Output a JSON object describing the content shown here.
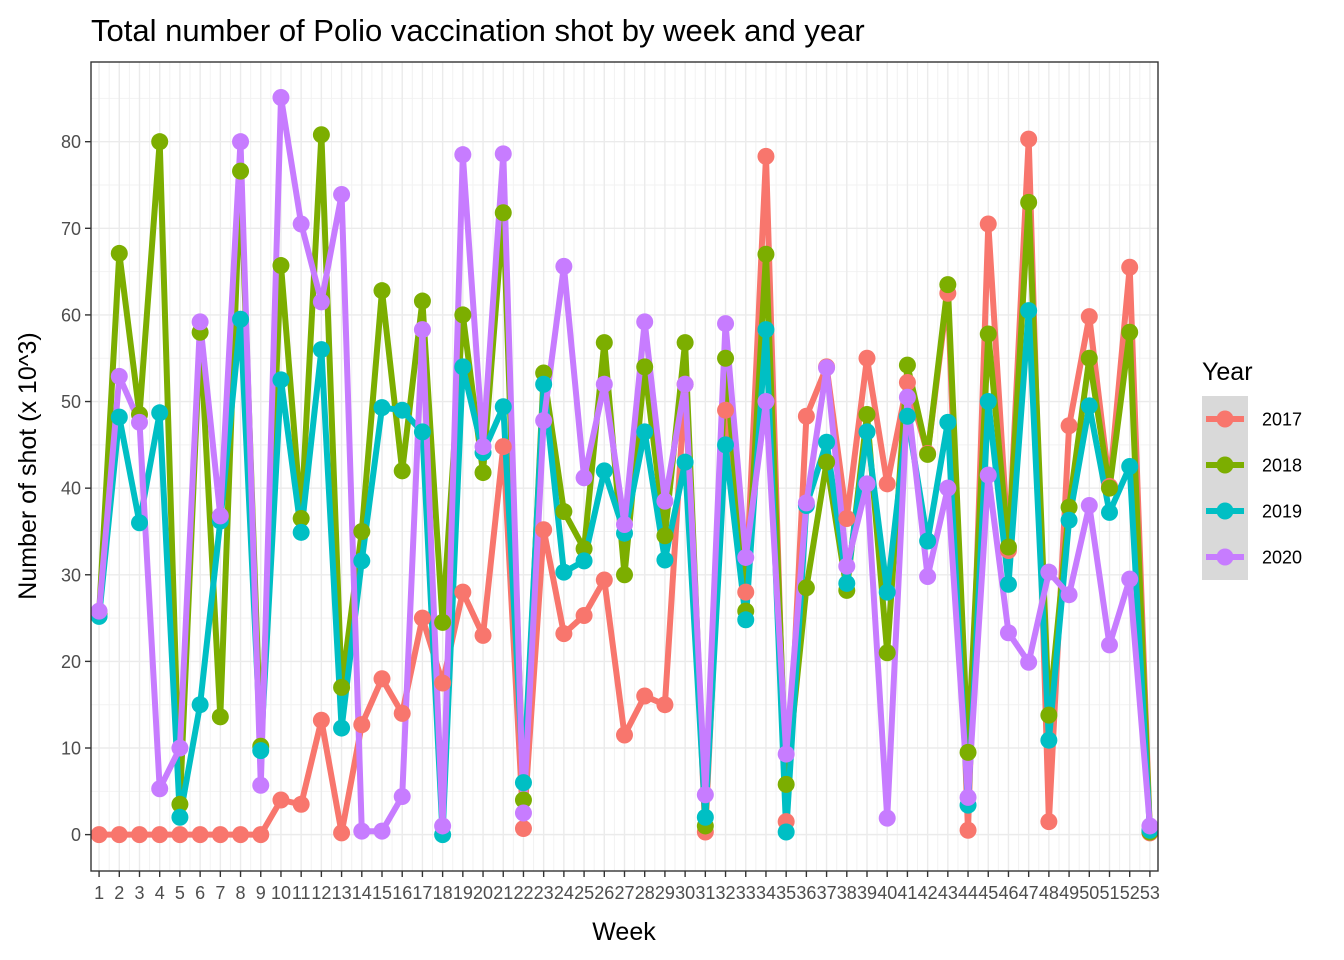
{
  "chart_data": {
    "type": "line",
    "title": "Total number of Polio vaccination shot by week and year",
    "xlabel": "Week",
    "ylabel": "Number of shot (x 10^3)",
    "x": [
      1,
      2,
      3,
      4,
      5,
      6,
      7,
      8,
      9,
      10,
      11,
      12,
      13,
      14,
      15,
      16,
      17,
      18,
      19,
      20,
      21,
      22,
      23,
      24,
      25,
      26,
      27,
      28,
      29,
      30,
      31,
      32,
      33,
      34,
      35,
      36,
      37,
      38,
      39,
      40,
      41,
      42,
      43,
      44,
      45,
      46,
      47,
      48,
      49,
      50,
      51,
      52,
      53
    ],
    "xlim": [
      0.6,
      53.4
    ],
    "ylim": [
      -4.2,
      89.2
    ],
    "yticks": [
      0,
      10,
      20,
      30,
      40,
      50,
      60,
      70,
      80
    ],
    "grid": true,
    "markers": true,
    "legend": {
      "title": "Year",
      "position": "right"
    },
    "series": [
      {
        "name": "2017",
        "color": "#F8766D",
        "values": [
          0,
          0,
          0,
          0,
          0,
          0,
          0,
          0,
          0,
          4,
          3.5,
          13.2,
          0.2,
          12.7,
          18,
          14,
          25,
          17.5,
          28,
          23,
          44.8,
          0.7,
          35.2,
          23.2,
          25.3,
          29.4,
          11.5,
          16,
          15,
          52,
          0.3,
          49,
          28,
          78.3,
          1.5,
          48.3,
          54,
          36.5,
          55,
          40.5,
          52.2,
          44,
          62.5,
          0.5,
          70.5,
          32.8,
          80.3,
          1.5,
          47.2,
          59.8,
          40.2,
          65.5,
          0.2
        ]
      },
      {
        "name": "2018",
        "color": "#7CAE00",
        "values": [
          25.5,
          67.1,
          48.5,
          80,
          3.5,
          58,
          13.6,
          76.6,
          10.2,
          65.7,
          36.5,
          80.8,
          17,
          35,
          62.8,
          42,
          61.6,
          24.5,
          60,
          41.8,
          71.8,
          4,
          53.3,
          37.3,
          33,
          56.8,
          30,
          54,
          34.5,
          56.8,
          1,
          55,
          25.8,
          67,
          5.8,
          28.5,
          43,
          28.2,
          48.5,
          21,
          54.2,
          43.9,
          63.5,
          9.5,
          57.8,
          33.2,
          73,
          13.8,
          37.8,
          55,
          40,
          58,
          0.3
        ]
      },
      {
        "name": "2019",
        "color": "#00BFC4",
        "values": [
          25.2,
          48.2,
          36,
          48.7,
          2,
          15,
          36.2,
          59.5,
          9.7,
          52.5,
          34.9,
          56,
          12.3,
          31.6,
          49.3,
          49,
          46.5,
          0,
          54,
          44.1,
          49.4,
          6,
          52,
          30.3,
          31.6,
          42,
          34.8,
          46.5,
          31.7,
          43,
          2,
          45,
          24.8,
          58.3,
          0.3,
          38,
          45.3,
          29,
          46.5,
          28,
          48.3,
          33.9,
          47.6,
          3.4,
          50,
          28.9,
          60.5,
          10.9,
          36.3,
          49.5,
          37.2,
          42.5,
          0.5
        ]
      },
      {
        "name": "2020",
        "color": "#C77CFF",
        "values": [
          25.8,
          52.9,
          47.6,
          5.3,
          10,
          59.2,
          36.8,
          80,
          5.7,
          85.1,
          70.5,
          61.5,
          73.9,
          0.4,
          0.4,
          4.4,
          58.3,
          1,
          78.5,
          44.8,
          78.6,
          2.5,
          47.8,
          65.6,
          41.2,
          52,
          35.8,
          59.2,
          38.5,
          52,
          4.6,
          59,
          32,
          50,
          9.3,
          38.3,
          53.9,
          31,
          40.5,
          1.9,
          50.5,
          29.8,
          40,
          4.3,
          41.5,
          23.3,
          19.9,
          30.3,
          27.7,
          38,
          21.9,
          29.5,
          1
        ]
      }
    ]
  }
}
